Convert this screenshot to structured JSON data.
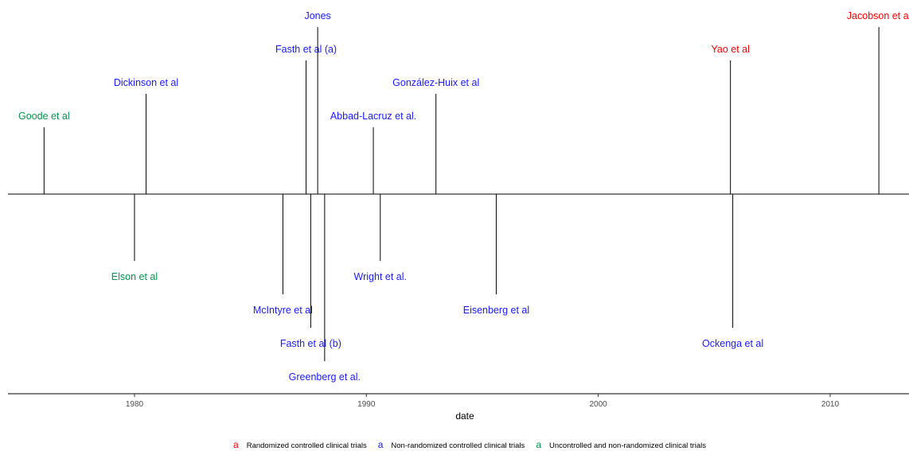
{
  "chart_data": {
    "type": "timeline",
    "title": "",
    "xlabel": "date",
    "ylabel": "",
    "xlim": [
      1974.2,
      2013.4
    ],
    "x_ticks": [
      1980,
      1990,
      2000,
      2010
    ],
    "grid": false,
    "legend_position": "bottom",
    "colors": {
      "Randomized controlled clinical trials": "#ff0000",
      "Non-randomized controlled clinical trials": "#1a1aff",
      "Uncontrolled and non-randomized clinical trials": "#00994d"
    },
    "legend": [
      {
        "key": "a",
        "label": "Randomized controlled clinical trials"
      },
      {
        "key": "a",
        "label": "Non-randomized controlled clinical trials"
      },
      {
        "key": "a",
        "label": "Uncontrolled and non-randomized clinical trials"
      }
    ],
    "events": [
      {
        "label": "Goode et al",
        "date": 1976.1,
        "position": 2.0,
        "category": "Uncontrolled and non-randomized clinical trials"
      },
      {
        "label": "Dickinson et al",
        "date": 1980.5,
        "position": 3.0,
        "category": "Non-randomized controlled clinical trials"
      },
      {
        "label": "Elson et al",
        "date": 1980.0,
        "position": -2.0,
        "category": "Uncontrolled and non-randomized clinical trials"
      },
      {
        "label": "McIntyre et al",
        "date": 1986.4,
        "position": -3.0,
        "category": "Non-randomized controlled clinical trials"
      },
      {
        "label": "Fasth et al (a)",
        "date": 1987.4,
        "position": 4.0,
        "category": "Non-randomized controlled clinical trials"
      },
      {
        "label": "Fasth et al (b)",
        "date": 1987.6,
        "position": -4.0,
        "category": "Non-randomized controlled clinical trials"
      },
      {
        "label": "Jones",
        "date": 1987.9,
        "position": 5.0,
        "category": "Non-randomized controlled clinical trials"
      },
      {
        "label": "Greenberg et al.",
        "date": 1988.2,
        "position": -5.0,
        "category": "Non-randomized controlled clinical trials"
      },
      {
        "label": "Abbad-Lacruz et al.",
        "date": 1990.3,
        "position": 2.0,
        "category": "Non-randomized controlled clinical trials"
      },
      {
        "label": "Wright et al.",
        "date": 1990.6,
        "position": -2.0,
        "category": "Non-randomized controlled clinical trials"
      },
      {
        "label": "González-Huix et al",
        "date": 1993.0,
        "position": 3.0,
        "category": "Non-randomized controlled clinical trials"
      },
      {
        "label": "Eisenberg et al",
        "date": 1995.6,
        "position": -3.0,
        "category": "Non-randomized controlled clinical trials"
      },
      {
        "label": "Yao et al",
        "date": 2005.7,
        "position": 4.0,
        "category": "Randomized controlled clinical trials"
      },
      {
        "label": "Ockenga et al",
        "date": 2005.8,
        "position": -4.0,
        "category": "Non-randomized controlled clinical trials"
      },
      {
        "label": "Jacobson et al",
        "date": 2012.1,
        "position": 5.0,
        "category": "Randomized controlled clinical trials"
      }
    ]
  }
}
